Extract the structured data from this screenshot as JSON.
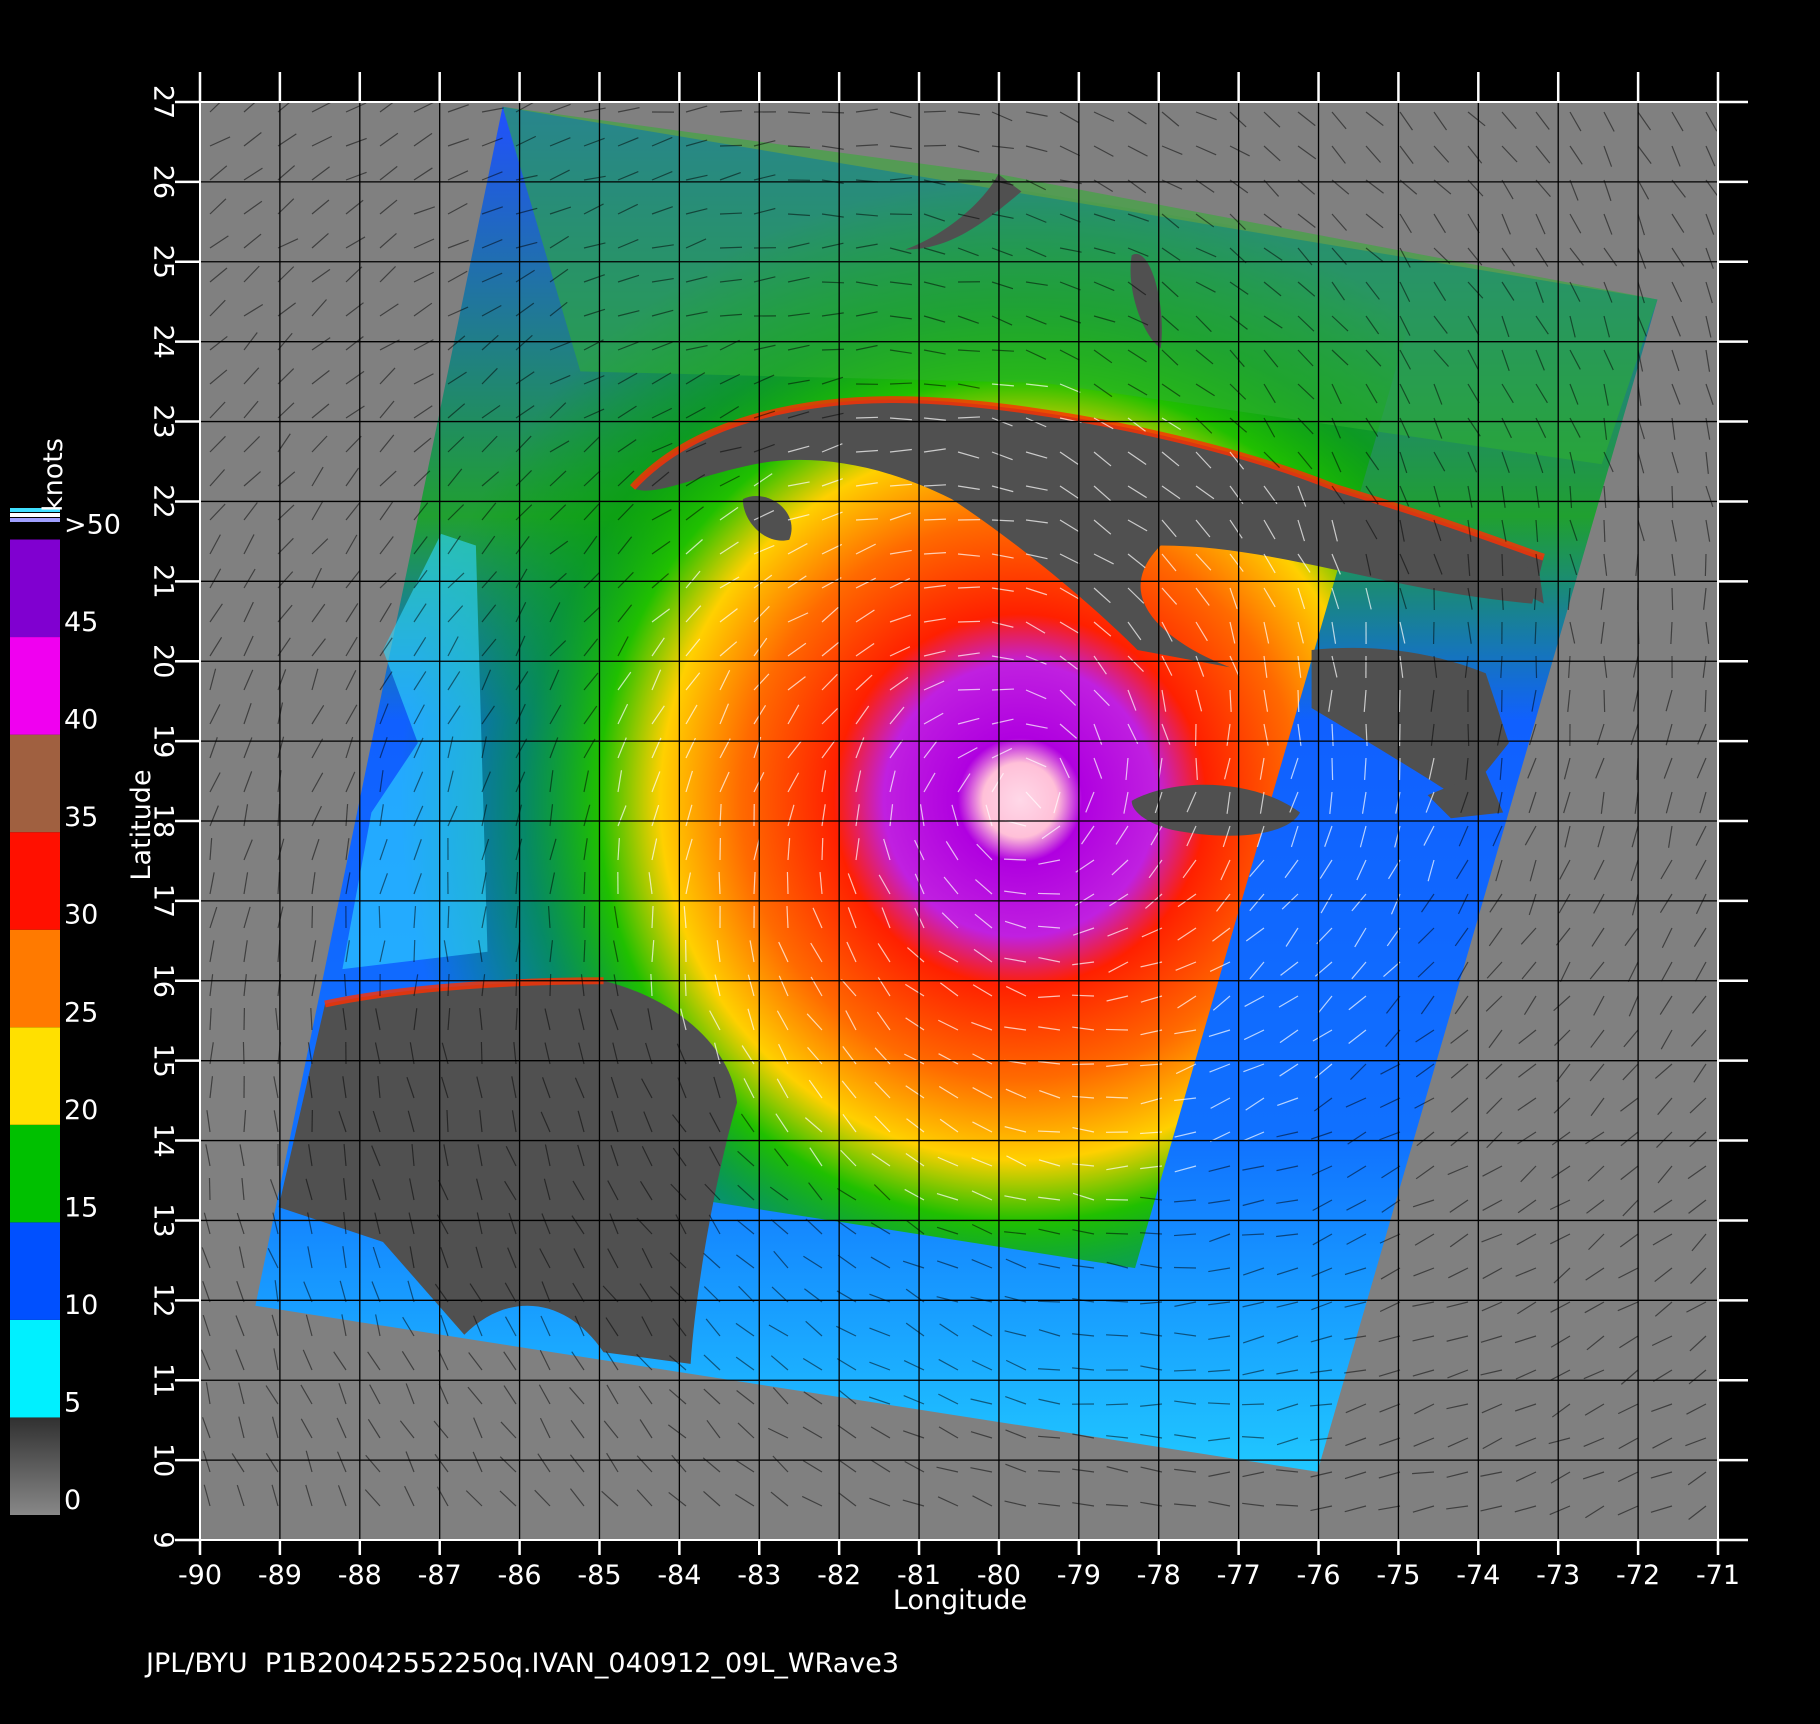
{
  "chart_data": {
    "type": "wind-map",
    "xlabel": "Longitude",
    "ylabel": "Latitude",
    "footer": "JPL/BYU  P1B20042552250q.IVAN_040912_09L_WRave3",
    "xlim": [
      -90,
      -71
    ],
    "xticks": [
      -90,
      -89,
      -88,
      -87,
      -86,
      -85,
      -84,
      -83,
      -82,
      -81,
      -80,
      -79,
      -78,
      -77,
      -76,
      -75,
      -74,
      -73,
      -72,
      -71
    ],
    "ylim": [
      9,
      27
    ],
    "yticks": [
      9,
      10,
      11,
      12,
      13,
      14,
      15,
      16,
      17,
      18,
      19,
      20,
      21,
      22,
      23,
      24,
      25,
      26,
      27
    ],
    "grid": true,
    "colorbar": {
      "label": "knots",
      "lim": [
        0,
        51
      ],
      "ticks": [
        0,
        5,
        10,
        15,
        20,
        25,
        30,
        35,
        40,
        45,
        {
          "value": 50,
          "label": ">50"
        }
      ],
      "colors": [
        [
          "#888888",
          "#303030"
        ],
        "#00f0ff",
        "#0050ff",
        "#00c000",
        "#ffe000",
        "#ff7a00",
        "#ff1000",
        "#a06040",
        "#f000f0",
        "#8000d0"
      ]
    }
  }
}
